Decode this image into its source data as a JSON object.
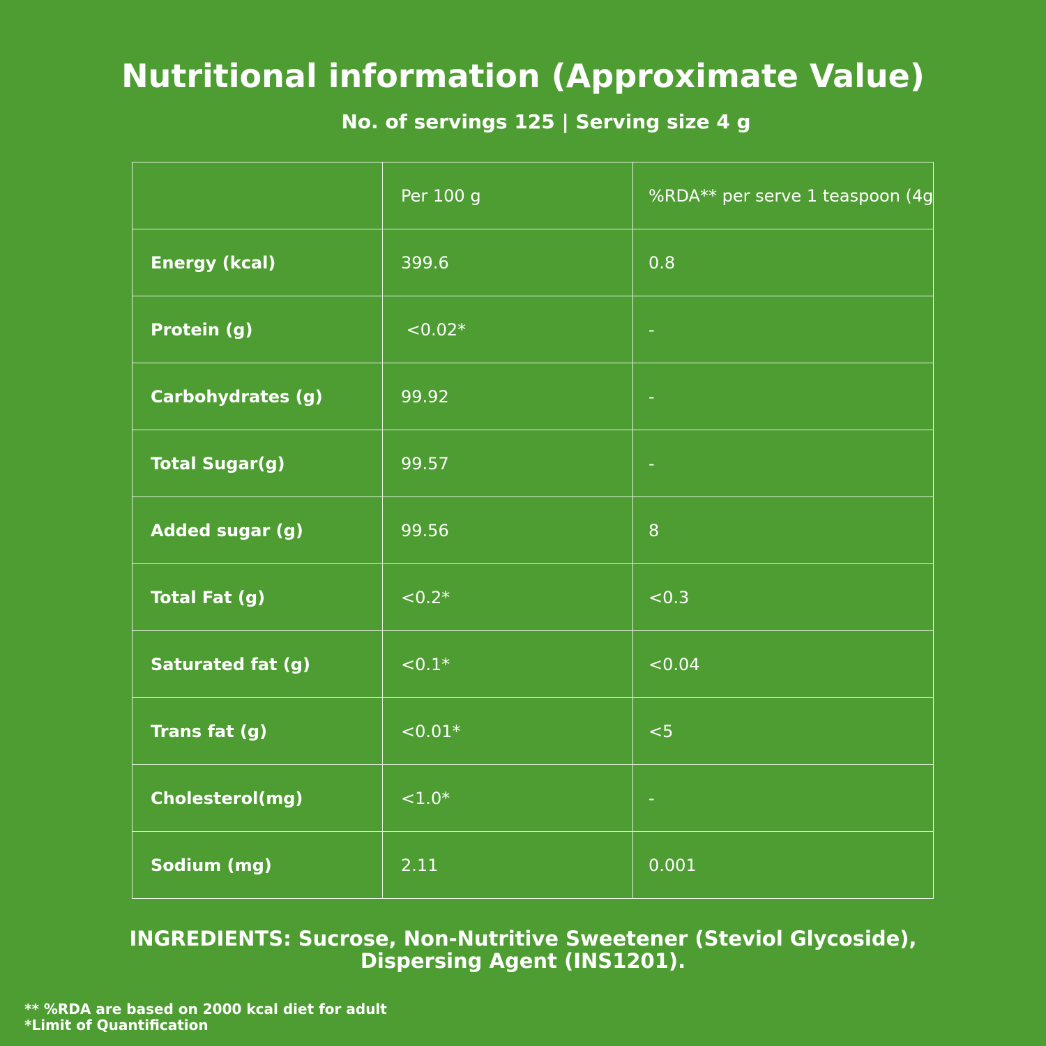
{
  "header": {
    "title": "Nutritional information (Approximate Value)",
    "subtitle": "No. of servings 125 | Serving size 4 g"
  },
  "table": {
    "columns": [
      "",
      "Per 100 g",
      "%RDA** per serve 1 teaspoon (4g"
    ],
    "rows": [
      [
        "Energy (kcal)",
        "399.6",
        "0.8"
      ],
      [
        "Protein (g)",
        " <0.02*",
        "-"
      ],
      [
        "Carbohydrates (g)",
        "99.92",
        "-"
      ],
      [
        "Total Sugar(g)",
        "99.57",
        "-"
      ],
      [
        "Added sugar (g)",
        "99.56",
        "8"
      ],
      [
        "Total Fat (g)",
        "<0.2*",
        "<0.3"
      ],
      [
        "Saturated fat (g)",
        "<0.1*",
        "<0.04"
      ],
      [
        "Trans fat (g)",
        "<0.01*",
        "<5"
      ],
      [
        "Cholesterol(mg)",
        "<1.0*",
        "-"
      ],
      [
        "Sodium (mg)",
        "2.11",
        "0.001"
      ]
    ]
  },
  "ingredients": {
    "line1": "INGREDIENTS: Sucrose, Non-Nutritive Sweetener (Steviol Glycoside),",
    "line2": "Dispersing Agent (INS1201)."
  },
  "footnotes": [
    "** %RDA are based on 2000 kcal diet for adult",
    "*Limit of Quantification"
  ]
}
